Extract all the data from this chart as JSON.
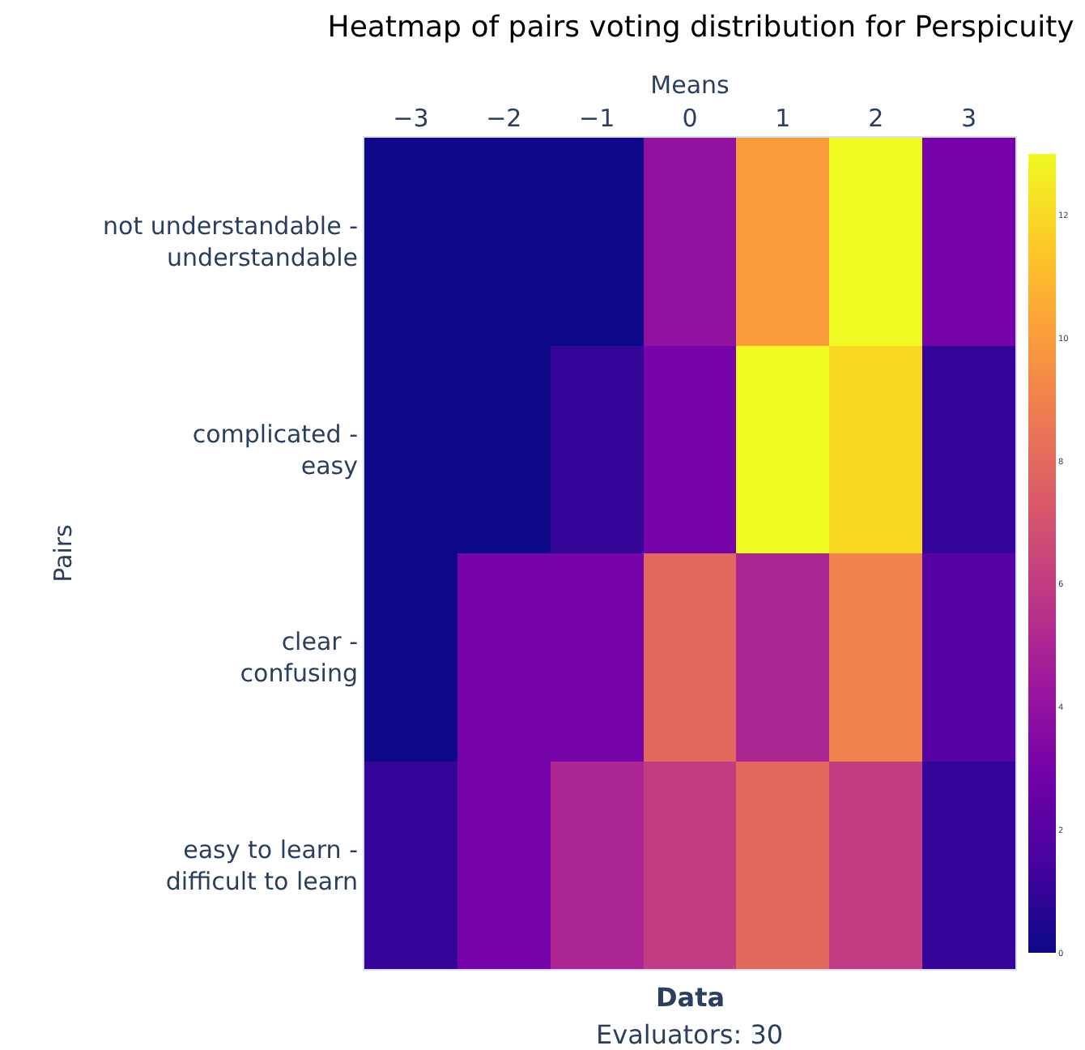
{
  "chart_data": {
    "type": "heatmap",
    "title": "Heatmap of pairs voting distribution for Perspicuity",
    "xlabel": "Means",
    "ylabel": "Pairs",
    "categories": [
      "−3",
      "−2",
      "−1",
      "0",
      "1",
      "2",
      "3"
    ],
    "y_categories": [
      "not understandable -\nunderstandable",
      "complicated -\neasy",
      "clear -\nconfusing",
      "easy to learn -\ndifficult to learn"
    ],
    "cells": [
      [
        0,
        0,
        0,
        4,
        10,
        13,
        3
      ],
      [
        0,
        0,
        1,
        3,
        13,
        12,
        1
      ],
      [
        0,
        3,
        3,
        8,
        5,
        9,
        2
      ],
      [
        1,
        3,
        5,
        6,
        8,
        6,
        1
      ]
    ],
    "clim": [
      0,
      13
    ],
    "cticks": [
      0,
      2,
      4,
      6,
      8,
      10,
      12
    ],
    "annotations": [
      "Data",
      "Evaluators: 30"
    ]
  }
}
